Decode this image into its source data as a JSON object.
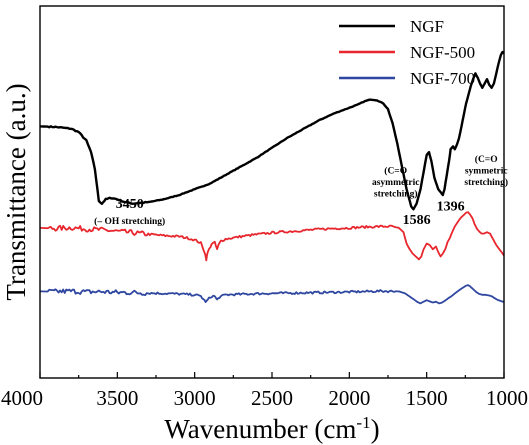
{
  "chart_data": {
    "type": "line",
    "xlabel": "Wavenumber (cm",
    "xlabel_sup": "-1",
    "xlabel_close": ")",
    "ylabel": "Transmittance (a.u.)",
    "xlim": [
      4000,
      1000
    ],
    "x_reversed": true,
    "ylim": [
      0,
      100
    ],
    "x_ticks": [
      4000,
      3500,
      3000,
      2500,
      2000,
      1500,
      1000
    ],
    "grid": false,
    "legend_position": "top-right",
    "series": [
      {
        "name": "NGF",
        "color": "#000000",
        "points": [
          [
            4000,
            74
          ],
          [
            3900,
            73.8
          ],
          [
            3800,
            73.2
          ],
          [
            3750,
            72
          ],
          [
            3700,
            69
          ],
          [
            3670,
            65
          ],
          [
            3645,
            59
          ],
          [
            3620,
            48
          ],
          [
            3600,
            47
          ],
          [
            3575,
            48.5
          ],
          [
            3540,
            49
          ],
          [
            3500,
            48.5
          ],
          [
            3450,
            47.5
          ],
          [
            3400,
            47
          ],
          [
            3300,
            47.5
          ],
          [
            3200,
            48.5
          ],
          [
            3100,
            50
          ],
          [
            3000,
            52
          ],
          [
            2900,
            54
          ],
          [
            2800,
            57
          ],
          [
            2700,
            60
          ],
          [
            2600,
            63
          ],
          [
            2500,
            66.5
          ],
          [
            2400,
            70
          ],
          [
            2300,
            73
          ],
          [
            2200,
            76
          ],
          [
            2100,
            78.5
          ],
          [
            2000,
            80.5
          ],
          [
            1950,
            81.5
          ],
          [
            1900,
            82.8
          ],
          [
            1860,
            83.4
          ],
          [
            1820,
            83.1
          ],
          [
            1780,
            82
          ],
          [
            1750,
            80
          ],
          [
            1720,
            75
          ],
          [
            1690,
            68
          ],
          [
            1660,
            60
          ],
          [
            1630,
            52
          ],
          [
            1600,
            46
          ],
          [
            1586,
            45
          ],
          [
            1565,
            47
          ],
          [
            1540,
            52
          ],
          [
            1520,
            58
          ],
          [
            1500,
            64
          ],
          [
            1485,
            65
          ],
          [
            1470,
            62
          ],
          [
            1450,
            56
          ],
          [
            1425,
            52
          ],
          [
            1410,
            51
          ],
          [
            1396,
            50
          ],
          [
            1385,
            52
          ],
          [
            1370,
            57
          ],
          [
            1355,
            62
          ],
          [
            1345,
            66
          ],
          [
            1330,
            67
          ],
          [
            1318,
            66
          ],
          [
            1305,
            67.5
          ],
          [
            1290,
            70
          ],
          [
            1275,
            74
          ],
          [
            1260,
            78
          ],
          [
            1245,
            82
          ],
          [
            1230,
            85
          ],
          [
            1215,
            88
          ],
          [
            1200,
            90.5
          ],
          [
            1185,
            92.5
          ],
          [
            1170,
            91
          ],
          [
            1155,
            89
          ],
          [
            1140,
            87.5
          ],
          [
            1125,
            89
          ],
          [
            1110,
            90.5
          ],
          [
            1095,
            88.5
          ],
          [
            1080,
            87.5
          ],
          [
            1065,
            89
          ],
          [
            1050,
            92.5
          ],
          [
            1035,
            96
          ],
          [
            1020,
            99
          ],
          [
            1010,
            100
          ],
          [
            1000,
            99.5
          ]
        ]
      },
      {
        "name": "NGF-500",
        "color": "#e8262d",
        "points": [
          [
            4000,
            38.5
          ],
          [
            3900,
            38.3
          ],
          [
            3800,
            38.6
          ],
          [
            3700,
            38.1
          ],
          [
            3600,
            37.8
          ],
          [
            3500,
            37.3
          ],
          [
            3400,
            36.8
          ],
          [
            3300,
            36.3
          ],
          [
            3200,
            35.8
          ],
          [
            3100,
            35.5
          ],
          [
            3050,
            35
          ],
          [
            3000,
            34.3
          ],
          [
            2960,
            33.2
          ],
          [
            2935,
            30
          ],
          [
            2925,
            27.5
          ],
          [
            2915,
            30
          ],
          [
            2890,
            33
          ],
          [
            2870,
            33.3
          ],
          [
            2855,
            31
          ],
          [
            2845,
            32.5
          ],
          [
            2830,
            34
          ],
          [
            2800,
            34.6
          ],
          [
            2700,
            35.5
          ],
          [
            2600,
            36.2
          ],
          [
            2500,
            36.8
          ],
          [
            2400,
            37.2
          ],
          [
            2300,
            37.6
          ],
          [
            2200,
            38
          ],
          [
            2100,
            38.3
          ],
          [
            2000,
            38.5
          ],
          [
            1900,
            38.8
          ],
          [
            1800,
            39
          ],
          [
            1720,
            39
          ],
          [
            1680,
            38.5
          ],
          [
            1650,
            37
          ],
          [
            1630,
            33
          ],
          [
            1610,
            31
          ],
          [
            1590,
            29.5
          ],
          [
            1570,
            28.5
          ],
          [
            1550,
            27.5
          ],
          [
            1535,
            28.5
          ],
          [
            1520,
            31
          ],
          [
            1500,
            33
          ],
          [
            1480,
            32.5
          ],
          [
            1460,
            31
          ],
          [
            1440,
            32
          ],
          [
            1425,
            30
          ],
          [
            1410,
            28.5
          ],
          [
            1396,
            29.5
          ],
          [
            1380,
            31
          ],
          [
            1365,
            33.5
          ],
          [
            1350,
            35
          ],
          [
            1335,
            37
          ],
          [
            1318,
            39
          ],
          [
            1300,
            40.5
          ],
          [
            1280,
            42
          ],
          [
            1260,
            43
          ],
          [
            1245,
            43.8
          ],
          [
            1232,
            44
          ],
          [
            1220,
            43.2
          ],
          [
            1205,
            42
          ],
          [
            1190,
            39.8
          ],
          [
            1175,
            38.2
          ],
          [
            1160,
            37.2
          ],
          [
            1145,
            36.5
          ],
          [
            1130,
            36.5
          ],
          [
            1110,
            37
          ],
          [
            1090,
            36.5
          ],
          [
            1070,
            34.5
          ],
          [
            1050,
            32.5
          ],
          [
            1030,
            31
          ],
          [
            1015,
            30
          ],
          [
            1000,
            28.8
          ]
        ]
      },
      {
        "name": "NGF-700",
        "color": "#2f47a0",
        "points": [
          [
            4000,
            16.3
          ],
          [
            3900,
            16.2
          ],
          [
            3800,
            16.4
          ],
          [
            3700,
            16.1
          ],
          [
            3600,
            16.2
          ],
          [
            3500,
            15.9
          ],
          [
            3400,
            15.9
          ],
          [
            3300,
            15.7
          ],
          [
            3200,
            15.6
          ],
          [
            3100,
            15.4
          ],
          [
            3000,
            15.1
          ],
          [
            2960,
            14.6
          ],
          [
            2935,
            13
          ],
          [
            2925,
            12.6
          ],
          [
            2915,
            13.4
          ],
          [
            2890,
            14.6
          ],
          [
            2870,
            14.6
          ],
          [
            2855,
            13.3
          ],
          [
            2840,
            14.3
          ],
          [
            2800,
            15.1
          ],
          [
            2600,
            15.5
          ],
          [
            2400,
            15.7
          ],
          [
            2200,
            15.9
          ],
          [
            2000,
            16.1
          ],
          [
            1800,
            16.4
          ],
          [
            1680,
            16.3
          ],
          [
            1640,
            15.6
          ],
          [
            1610,
            14.5
          ],
          [
            1580,
            13.4
          ],
          [
            1560,
            12.6
          ],
          [
            1540,
            12.1
          ],
          [
            1520,
            12.7
          ],
          [
            1500,
            13.2
          ],
          [
            1480,
            12.8
          ],
          [
            1460,
            12.4
          ],
          [
            1440,
            12.7
          ],
          [
            1420,
            12.1
          ],
          [
            1400,
            12.4
          ],
          [
            1380,
            13.1
          ],
          [
            1360,
            13.9
          ],
          [
            1340,
            14.6
          ],
          [
            1320,
            15.5
          ],
          [
            1300,
            16.3
          ],
          [
            1280,
            17.1
          ],
          [
            1260,
            17.8
          ],
          [
            1245,
            18.3
          ],
          [
            1232,
            18.5
          ],
          [
            1220,
            18.1
          ],
          [
            1200,
            17.1
          ],
          [
            1180,
            16.1
          ],
          [
            1160,
            15.4
          ],
          [
            1140,
            15.1
          ],
          [
            1120,
            15.1
          ],
          [
            1100,
            14.9
          ],
          [
            1080,
            14.6
          ],
          [
            1060,
            13.9
          ],
          [
            1040,
            13.3
          ],
          [
            1020,
            12.9
          ],
          [
            1000,
            12.6
          ]
        ]
      }
    ],
    "annotations": [
      {
        "id": "a3450-num",
        "text": "3450",
        "x": 3420,
        "y": 45.5,
        "size": 14
      },
      {
        "id": "a3450-desc",
        "text": "(– OH stretching)",
        "x": 3420,
        "y": 39.8,
        "size": 9.5
      },
      {
        "id": "a1586-num",
        "text": "1586",
        "x": 1565,
        "y": 39.8,
        "size": 14
      },
      {
        "id": "a1396-num",
        "text": "1396",
        "x": 1345,
        "y": 44.5,
        "size": 14
      },
      {
        "id": "asym-l1",
        "text": "(C=O",
        "x": 1700,
        "y": 57.5,
        "size": 9.5
      },
      {
        "id": "asym-l2",
        "text": "asymmetric",
        "x": 1700,
        "y": 53.5,
        "size": 9.5
      },
      {
        "id": "asym-l3",
        "text": "stretching)",
        "x": 1700,
        "y": 49.5,
        "size": 9.5
      },
      {
        "id": "sym-l1",
        "text": "(C=O",
        "x": 1115,
        "y": 61.5,
        "size": 9.5
      },
      {
        "id": "sym-l2",
        "text": "symmetric",
        "x": 1115,
        "y": 57.5,
        "size": 9.5
      },
      {
        "id": "sym-l3",
        "text": "stretching)",
        "x": 1115,
        "y": 53.5,
        "size": 9.5
      }
    ]
  }
}
